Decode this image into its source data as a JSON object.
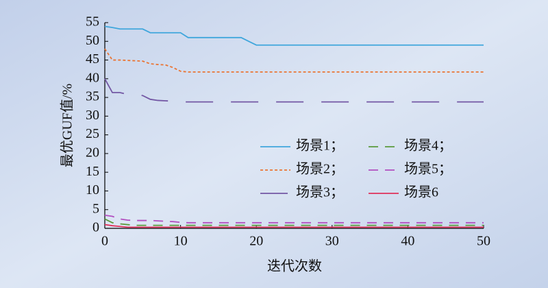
{
  "chart_data": {
    "type": "line",
    "x_label": "迭代次数",
    "y_label": "最优GUF值/%",
    "x": [
      0,
      1,
      2,
      3,
      4,
      5,
      6,
      7,
      8,
      9,
      10,
      11,
      12,
      13,
      14,
      15,
      16,
      17,
      18,
      19,
      20,
      21,
      22,
      23,
      24,
      25,
      26,
      27,
      28,
      29,
      30,
      31,
      32,
      33,
      34,
      35,
      36,
      37,
      38,
      39,
      40,
      41,
      42,
      43,
      44,
      45,
      46,
      47,
      48,
      49,
      50
    ],
    "series": [
      {
        "name": "场景1；",
        "color": "#3fa6dc",
        "style": "solid",
        "values": [
          54,
          53.7,
          53.3,
          53.3,
          53.3,
          53.3,
          52.3,
          52.3,
          52.3,
          52.3,
          52.3,
          51,
          51,
          51,
          51,
          51,
          51,
          51,
          51,
          50,
          49,
          49,
          49,
          49,
          49,
          49,
          49,
          49,
          49,
          49,
          49,
          49,
          49,
          49,
          49,
          49,
          49,
          49,
          49,
          49,
          49,
          49,
          49,
          49,
          49,
          49,
          49,
          49,
          49,
          49,
          49
        ]
      },
      {
        "name": "场景2；",
        "color": "#ea7432",
        "style": "dotted",
        "values": [
          48,
          45,
          45,
          44.9,
          44.8,
          44.7,
          44,
          43.8,
          43.7,
          43,
          42,
          41.8,
          41.8,
          41.8,
          41.8,
          41.8,
          41.8,
          41.8,
          41.8,
          41.8,
          41.8,
          41.8,
          41.8,
          41.8,
          41.8,
          41.8,
          41.8,
          41.8,
          41.8,
          41.8,
          41.8,
          41.8,
          41.8,
          41.8,
          41.8,
          41.8,
          41.8,
          41.8,
          41.8,
          41.8,
          41.8,
          41.8,
          41.8,
          41.8,
          41.8,
          41.8,
          41.8,
          41.8,
          41.8,
          41.8,
          41.8
        ]
      },
      {
        "name": "场景3；",
        "color": "#7357a4",
        "style": "long-dashed",
        "values": [
          40,
          36.3,
          36.3,
          35.8,
          35.8,
          35.5,
          34.5,
          34.2,
          34.1,
          34,
          33.8,
          33.8,
          33.8,
          33.8,
          33.8,
          33.8,
          33.8,
          33.8,
          33.8,
          33.8,
          33.8,
          33.8,
          33.8,
          33.8,
          33.8,
          33.8,
          33.8,
          33.8,
          33.8,
          33.8,
          33.8,
          33.8,
          33.8,
          33.8,
          33.8,
          33.8,
          33.8,
          33.8,
          33.8,
          33.8,
          33.8,
          33.8,
          33.8,
          33.8,
          33.8,
          33.8,
          33.8,
          33.8,
          33.8,
          33.8,
          33.8
        ]
      },
      {
        "name": "场景4；",
        "color": "#5b9a3c",
        "style": "dashed",
        "values": [
          2.5,
          1.5,
          1.2,
          1,
          0.8,
          0.8,
          0.8,
          0.8,
          0.8,
          0.8,
          0.8,
          0.8,
          0.8,
          0.8,
          0.8,
          0.8,
          0.8,
          0.8,
          0.8,
          0.8,
          0.8,
          0.8,
          0.8,
          0.8,
          0.8,
          0.8,
          0.8,
          0.8,
          0.8,
          0.8,
          0.8,
          0.8,
          0.8,
          0.8,
          0.8,
          0.8,
          0.8,
          0.8,
          0.8,
          0.8,
          0.8,
          0.8,
          0.8,
          0.8,
          0.8,
          0.8,
          0.8,
          0.8,
          0.8,
          0.8,
          0.8
        ]
      },
      {
        "name": "场景5；",
        "color": "#b24fc0",
        "style": "dashed",
        "values": [
          3.5,
          3.2,
          2.5,
          2.2,
          2.1,
          2.1,
          2.1,
          2,
          1.9,
          1.8,
          1.6,
          1.5,
          1.5,
          1.5,
          1.5,
          1.5,
          1.5,
          1.5,
          1.5,
          1.5,
          1.5,
          1.5,
          1.5,
          1.5,
          1.5,
          1.5,
          1.5,
          1.5,
          1.5,
          1.5,
          1.5,
          1.5,
          1.5,
          1.5,
          1.5,
          1.5,
          1.5,
          1.5,
          1.5,
          1.5,
          1.5,
          1.5,
          1.5,
          1.5,
          1.5,
          1.5,
          1.5,
          1.5,
          1.5,
          1.5,
          1.5
        ]
      },
      {
        "name": "场景6",
        "color": "#e0305a",
        "style": "solid",
        "values": [
          1,
          0.7,
          0.5,
          0.3,
          0.3,
          0.3,
          0.3,
          0.3,
          0.3,
          0.3,
          0.3,
          0.3,
          0.3,
          0.3,
          0.3,
          0.3,
          0.3,
          0.3,
          0.3,
          0.3,
          0.3,
          0.3,
          0.3,
          0.3,
          0.3,
          0.3,
          0.3,
          0.3,
          0.3,
          0.3,
          0.3,
          0.3,
          0.3,
          0.3,
          0.3,
          0.3,
          0.3,
          0.3,
          0.3,
          0.3,
          0.3,
          0.3,
          0.3,
          0.3,
          0.3,
          0.3,
          0.3,
          0.3,
          0.3,
          0.3,
          0.3
        ]
      }
    ],
    "xlim": [
      0,
      50
    ],
    "xticks": [
      0,
      10,
      20,
      30,
      40,
      50
    ],
    "ylim": [
      0,
      55
    ],
    "yticks": [
      0,
      5,
      10,
      15,
      20,
      25,
      30,
      35,
      40,
      45,
      50,
      55
    ],
    "grid": false,
    "legend": "center-right"
  }
}
